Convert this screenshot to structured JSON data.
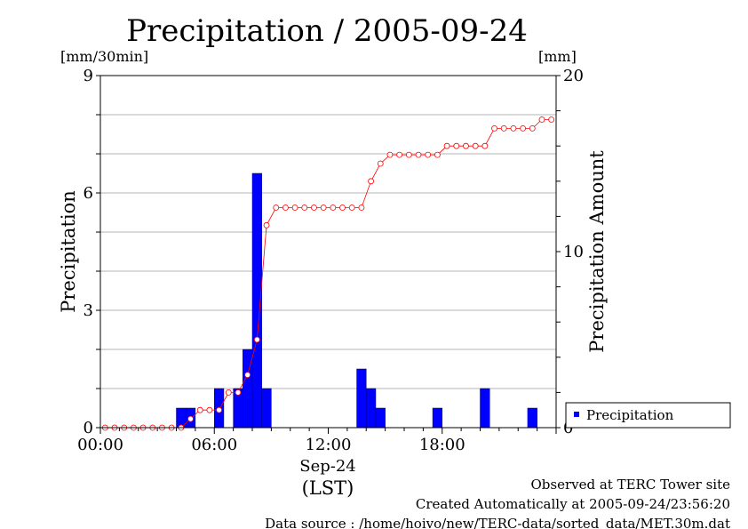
{
  "chart_data": {
    "type": "bar",
    "title": "Precipitation / 2005-09-24",
    "left_unit": "[mm/30min]",
    "right_unit": "[mm]",
    "ylabel": "Precipitation",
    "y2label": "Precipitation Amount",
    "ylim": [
      0,
      9
    ],
    "y2lim": [
      0,
      20
    ],
    "yticks": [
      "0",
      "3",
      "6",
      "9"
    ],
    "y2ticks": [
      "0",
      "10",
      "20"
    ],
    "xlim": [
      0,
      24
    ],
    "xticks": [
      "00:00",
      "06:00",
      "12:00",
      "18:00"
    ],
    "xlabel_date": "Sep-24",
    "xlabel_tz": "(LST)",
    "grid": true,
    "legend_position": "right",
    "bar_color": "#0000ff",
    "line_color": "#ff0000",
    "series": [
      {
        "name": "Precipitation",
        "kind": "bar",
        "x": [
          4.0,
          4.5,
          6.0,
          7.0,
          7.5,
          8.0,
          8.5,
          13.5,
          14.0,
          14.5,
          17.5,
          20.0,
          22.5
        ],
        "values": [
          0.5,
          0.5,
          1.0,
          1.0,
          2.0,
          6.5,
          1.0,
          1.5,
          1.0,
          0.5,
          0.5,
          1.0,
          0.5
        ]
      },
      {
        "kind": "line",
        "x": [
          0,
          0.5,
          1,
          1.5,
          2,
          2.5,
          3,
          3.5,
          4,
          4.5,
          5,
          5.5,
          6,
          6.5,
          7,
          7.5,
          8,
          8.5,
          9,
          9.5,
          10,
          10.5,
          11,
          11.5,
          12,
          12.5,
          13,
          13.5,
          14,
          14.5,
          15,
          15.5,
          16,
          16.5,
          17,
          17.5,
          18,
          18.5,
          19,
          19.5,
          20,
          20.5,
          21,
          21.5,
          22,
          22.5,
          23,
          23.5
        ],
        "values": [
          0,
          0,
          0,
          0,
          0,
          0,
          0,
          0,
          0,
          0.5,
          1,
          1,
          1,
          2,
          2,
          3,
          5,
          11.5,
          12.5,
          12.5,
          12.5,
          12.5,
          12.5,
          12.5,
          12.5,
          12.5,
          12.5,
          12.5,
          14,
          15,
          15.5,
          15.5,
          15.5,
          15.5,
          15.5,
          15.5,
          16,
          16,
          16,
          16,
          16,
          17,
          17,
          17,
          17,
          17,
          17.5,
          17.5
        ]
      }
    ]
  },
  "footer": {
    "line1": "Observed at TERC Tower site",
    "line2": "Created Automatically at 2005-09-24/23:56:20",
    "line3": "Data source : /home/hoivo/new/TERC-data/sorted_data/MET.30m.dat"
  }
}
